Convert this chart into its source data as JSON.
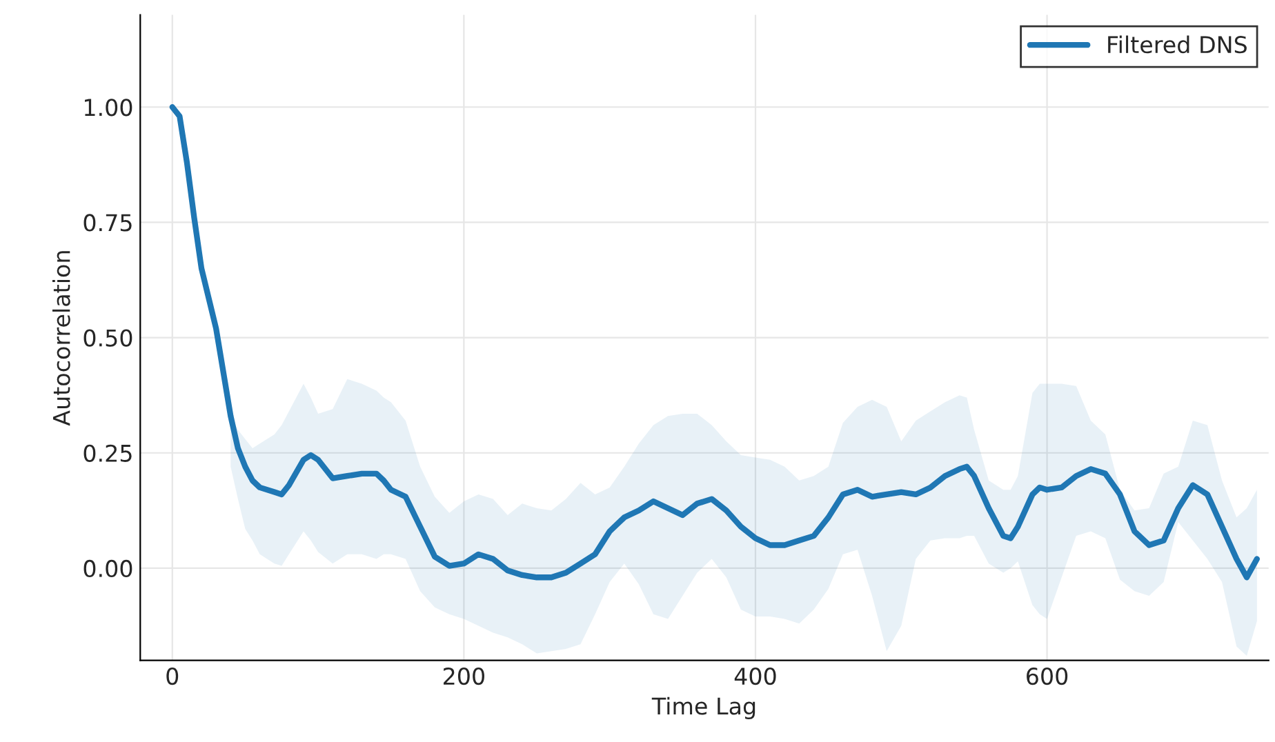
{
  "chart_data": {
    "type": "line",
    "xlabel": "Time Lag",
    "ylabel": "Autocorrelation",
    "x": [
      0,
      5,
      10,
      15,
      20,
      30,
      40,
      45,
      50,
      55,
      60,
      70,
      75,
      80,
      90,
      95,
      100,
      110,
      120,
      130,
      140,
      145,
      150,
      160,
      170,
      180,
      190,
      200,
      210,
      220,
      230,
      240,
      250,
      260,
      270,
      280,
      290,
      300,
      310,
      320,
      330,
      340,
      350,
      360,
      370,
      380,
      390,
      400,
      410,
      420,
      430,
      440,
      450,
      460,
      470,
      480,
      490,
      500,
      510,
      520,
      530,
      540,
      545,
      550,
      560,
      570,
      575,
      580,
      590,
      595,
      600,
      610,
      620,
      630,
      640,
      650,
      660,
      670,
      680,
      690,
      700,
      710,
      720,
      730,
      737,
      744
    ],
    "series": [
      {
        "name": "Filtered DNS",
        "color": "#1f77b4",
        "values": [
          1.0,
          0.98,
          0.88,
          0.76,
          0.65,
          0.52,
          0.33,
          0.26,
          0.22,
          0.19,
          0.175,
          0.165,
          0.16,
          0.18,
          0.235,
          0.245,
          0.235,
          0.195,
          0.2,
          0.205,
          0.205,
          0.19,
          0.17,
          0.155,
          0.09,
          0.025,
          0.005,
          0.01,
          0.03,
          0.02,
          -0.005,
          -0.015,
          -0.02,
          -0.02,
          -0.01,
          0.01,
          0.03,
          0.08,
          0.11,
          0.125,
          0.145,
          0.13,
          0.115,
          0.14,
          0.15,
          0.125,
          0.09,
          0.065,
          0.05,
          0.05,
          0.06,
          0.07,
          0.11,
          0.16,
          0.17,
          0.155,
          0.16,
          0.165,
          0.16,
          0.175,
          0.2,
          0.215,
          0.22,
          0.2,
          0.13,
          0.07,
          0.065,
          0.09,
          0.16,
          0.175,
          0.17,
          0.175,
          0.2,
          0.215,
          0.205,
          0.16,
          0.08,
          0.05,
          0.06,
          0.13,
          0.18,
          0.16,
          0.09,
          0.02,
          -0.02,
          0.02
        ],
        "lower": [
          null,
          null,
          null,
          null,
          null,
          null,
          0.22,
          0.15,
          0.085,
          0.06,
          0.03,
          0.01,
          0.005,
          0.03,
          0.08,
          0.06,
          0.035,
          0.01,
          0.03,
          0.03,
          0.02,
          0.03,
          0.03,
          0.02,
          -0.05,
          -0.085,
          -0.1,
          -0.11,
          -0.125,
          -0.14,
          -0.15,
          -0.165,
          -0.185,
          -0.18,
          -0.175,
          -0.165,
          -0.1,
          -0.03,
          0.01,
          -0.035,
          -0.1,
          -0.11,
          -0.06,
          -0.01,
          0.02,
          -0.02,
          -0.09,
          -0.105,
          -0.105,
          -0.11,
          -0.12,
          -0.09,
          -0.045,
          0.03,
          0.04,
          -0.06,
          -0.18,
          -0.125,
          0.02,
          0.06,
          0.065,
          0.065,
          0.07,
          0.07,
          0.01,
          -0.01,
          0.0,
          0.015,
          -0.08,
          -0.1,
          -0.11,
          -0.02,
          0.07,
          0.08,
          0.065,
          -0.025,
          -0.05,
          -0.06,
          -0.03,
          0.1,
          0.06,
          0.02,
          -0.03,
          -0.17,
          -0.19,
          -0.115
        ],
        "upper": [
          null,
          null,
          null,
          null,
          null,
          null,
          0.33,
          0.3,
          0.28,
          0.26,
          0.27,
          0.29,
          0.31,
          0.34,
          0.4,
          0.37,
          0.335,
          0.345,
          0.41,
          0.4,
          0.385,
          0.37,
          0.36,
          0.32,
          0.22,
          0.155,
          0.12,
          0.145,
          0.16,
          0.15,
          0.115,
          0.14,
          0.13,
          0.125,
          0.15,
          0.185,
          0.16,
          0.175,
          0.22,
          0.27,
          0.31,
          0.33,
          0.335,
          0.335,
          0.31,
          0.275,
          0.245,
          0.24,
          0.235,
          0.22,
          0.19,
          0.2,
          0.22,
          0.315,
          0.35,
          0.365,
          0.35,
          0.275,
          0.32,
          0.34,
          0.36,
          0.375,
          0.37,
          0.3,
          0.19,
          0.17,
          0.17,
          0.2,
          0.38,
          0.4,
          0.4,
          0.4,
          0.395,
          0.32,
          0.29,
          0.17,
          0.125,
          0.13,
          0.205,
          0.22,
          0.32,
          0.31,
          0.19,
          0.11,
          0.13,
          0.17
        ]
      }
    ],
    "xlim": [
      -22,
      752
    ],
    "ylim": [
      -0.2,
      1.2
    ],
    "xticks": [
      0,
      200,
      400,
      600
    ],
    "yticks": [
      {
        "value": 0,
        "label": "0.00"
      },
      {
        "value": 0.25,
        "label": "0.25"
      },
      {
        "value": 0.5,
        "label": "0.50"
      },
      {
        "value": 0.75,
        "label": "0.75"
      },
      {
        "value": 1.0,
        "label": "1.00"
      }
    ],
    "grid": true,
    "legend": "top right",
    "line_style": "solid",
    "marker": "none"
  }
}
